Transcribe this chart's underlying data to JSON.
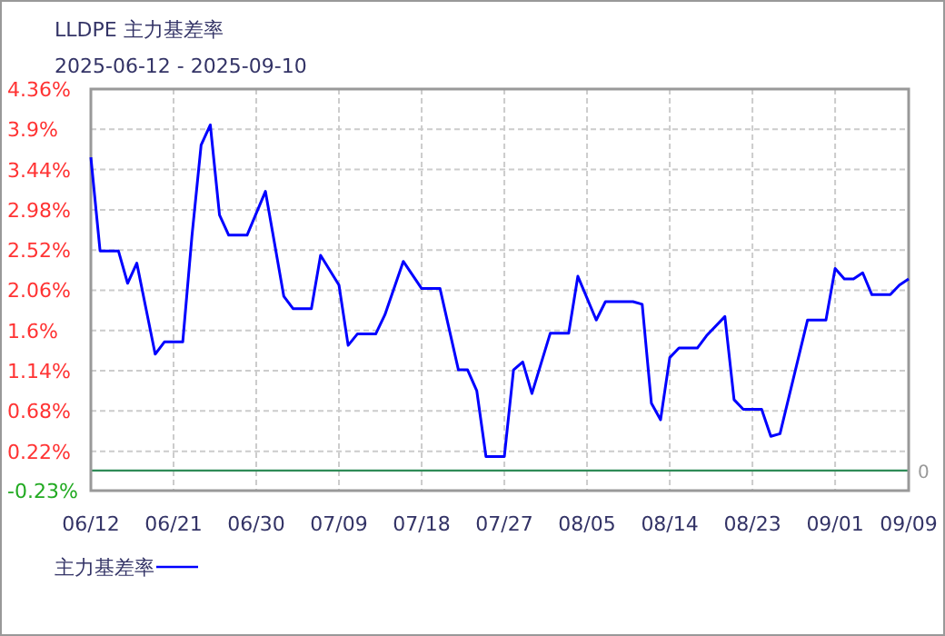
{
  "chart_data": {
    "type": "line",
    "title": "LLDPE  主力基差率",
    "subtitle": "2025-06-12 - 2025-09-10",
    "x": [
      "2025-06-12",
      "2025-06-13",
      "2025-06-15",
      "2025-06-16",
      "2025-06-17",
      "2025-06-18",
      "2025-06-19",
      "2025-06-20",
      "2025-06-22",
      "2025-06-23",
      "2025-06-24",
      "2025-06-25",
      "2025-06-26",
      "2025-06-27",
      "2025-06-29",
      "2025-07-01",
      "2025-07-03",
      "2025-07-04",
      "2025-07-06",
      "2025-07-07",
      "2025-07-09",
      "2025-07-10",
      "2025-07-11",
      "2025-07-13",
      "2025-07-14",
      "2025-07-16",
      "2025-07-18",
      "2025-07-20",
      "2025-07-22",
      "2025-07-23",
      "2025-07-24",
      "2025-07-25",
      "2025-07-27",
      "2025-07-28",
      "2025-07-29",
      "2025-07-30",
      "2025-08-01",
      "2025-08-03",
      "2025-08-04",
      "2025-08-06",
      "2025-08-07",
      "2025-08-10",
      "2025-08-11",
      "2025-08-12",
      "2025-08-13",
      "2025-08-14",
      "2025-08-15",
      "2025-08-17",
      "2025-08-18",
      "2025-08-20",
      "2025-08-21",
      "2025-08-22",
      "2025-08-24",
      "2025-08-25",
      "2025-08-26",
      "2025-08-29",
      "2025-08-31",
      "2025-09-01",
      "2025-09-02",
      "2025-09-03",
      "2025-09-04",
      "2025-09-05",
      "2025-09-07",
      "2025-09-08",
      "2025-09-09"
    ],
    "series": [
      {
        "name": "主力基差率",
        "color": "#0000ff",
        "values": [
          3.58,
          2.51,
          2.51,
          2.14,
          2.37,
          1.85,
          1.33,
          1.47,
          1.47,
          2.68,
          3.72,
          3.95,
          2.92,
          2.69,
          2.69,
          3.19,
          1.99,
          1.85,
          1.85,
          2.46,
          2.12,
          1.43,
          1.56,
          1.56,
          1.78,
          2.39,
          2.08,
          2.08,
          1.15,
          1.15,
          0.91,
          0.16,
          0.16,
          1.15,
          1.24,
          0.88,
          1.57,
          1.57,
          2.22,
          1.72,
          1.93,
          1.93,
          1.9,
          0.77,
          0.58,
          1.29,
          1.4,
          1.4,
          1.54,
          1.76,
          0.81,
          0.7,
          0.7,
          0.39,
          0.42,
          1.72,
          1.72,
          2.31,
          2.19,
          2.19,
          2.26,
          2.01,
          2.01,
          2.12,
          2.19
        ]
      }
    ],
    "xlim": [
      "2025-06-12",
      "2025-09-09"
    ],
    "xticks": [
      {
        "value": "2025-06-12",
        "label": "06/12"
      },
      {
        "value": "2025-06-21",
        "label": "06/21"
      },
      {
        "value": "2025-06-30",
        "label": "06/30"
      },
      {
        "value": "2025-07-09",
        "label": "07/09"
      },
      {
        "value": "2025-07-18",
        "label": "07/18"
      },
      {
        "value": "2025-07-27",
        "label": "07/27"
      },
      {
        "value": "2025-08-05",
        "label": "08/05"
      },
      {
        "value": "2025-08-14",
        "label": "08/14"
      },
      {
        "value": "2025-08-23",
        "label": "08/23"
      },
      {
        "value": "2025-09-01",
        "label": "09/01"
      },
      {
        "value": "2025-09-09",
        "label": "09/09"
      }
    ],
    "ylim": [
      -0.23,
      4.36
    ],
    "yticks": [
      {
        "value": -0.23,
        "label": "-0.23%"
      },
      {
        "value": 0.22,
        "label": "0.22%"
      },
      {
        "value": 0.68,
        "label": "0.68%"
      },
      {
        "value": 1.14,
        "label": "1.14%"
      },
      {
        "value": 1.6,
        "label": "1.6%"
      },
      {
        "value": 2.06,
        "label": "2.06%"
      },
      {
        "value": 2.52,
        "label": "2.52%"
      },
      {
        "value": 2.98,
        "label": "2.98%"
      },
      {
        "value": 3.44,
        "label": "3.44%"
      },
      {
        "value": 3.9,
        "label": "3.9%"
      },
      {
        "value": 4.36,
        "label": "4.36%"
      }
    ],
    "ref_lines": [
      {
        "axis": "y",
        "value": 0,
        "label": "0",
        "color": "#2e8b57"
      }
    ],
    "grid": true,
    "legend": "bottom",
    "line_style": "solid"
  }
}
